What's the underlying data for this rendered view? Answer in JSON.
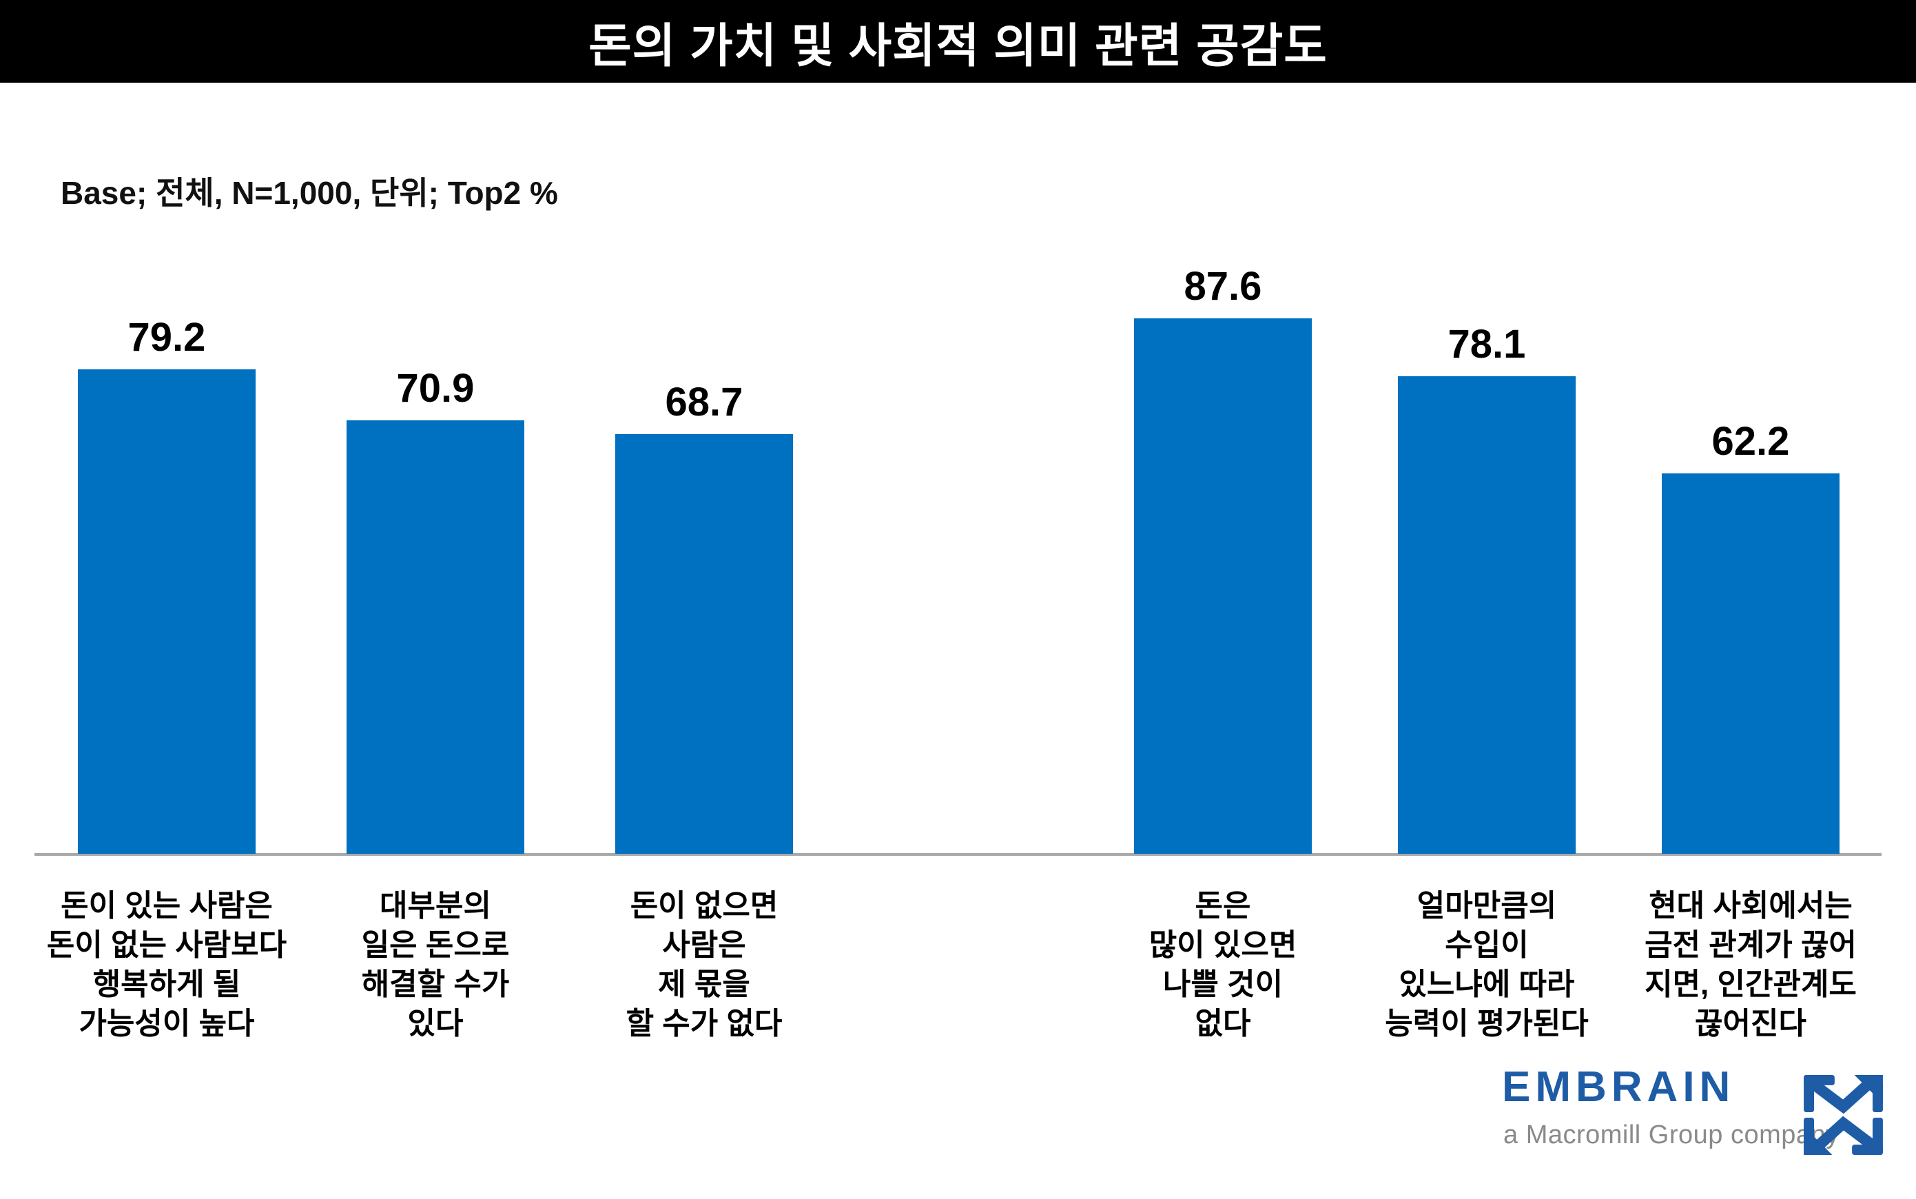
{
  "header": {
    "title": "돈의 가치 및 사회적 의미 관련 공감도"
  },
  "base_note": "Base; 전체, N=1,000, 단위; Top2 %",
  "chart_data": {
    "type": "bar",
    "title": "돈의 가치 및 사회적 의미 관련 공감도",
    "subtitle": "Base; 전체, N=1,000, 단위; Top2 %",
    "unit": "Top2 %",
    "categories": [
      "돈이 있는 사람은 돈이 없는 사람보다 행복하게 될 가능성이 높다",
      "대부분의 일은 돈으로 해결할 수가 있다",
      "돈이 없으면 사람은 제 몫을 할 수가 없다",
      "돈은 많이 있으면 나쁠 것이 없다",
      "얼마만큼의 수입이 있느냐에 따라 능력이 평가된다",
      "현대 사회에서는 금전 관계가 끊어지면, 인간관계도 끊어진다"
    ],
    "category_lines": [
      [
        "돈이 있는 사람은",
        "돈이 없는 사람보다",
        "행복하게 될",
        "가능성이 높다"
      ],
      [
        "대부분의",
        "일은 돈으로",
        "해결할 수가",
        "있다"
      ],
      [
        "돈이 없으면",
        "사람은",
        "제 몫을",
        "할 수가 없다"
      ],
      [
        "돈은",
        "많이 있으면",
        "나쁠 것이",
        "없다"
      ],
      [
        "얼마만큼의",
        "수입이",
        "있느냐에 따라",
        "능력이 평가된다"
      ],
      [
        "현대 사회에서는",
        "금전 관계가 끊어",
        "지면, 인간관계도",
        "끊어진다"
      ]
    ],
    "values": [
      79.2,
      70.9,
      68.7,
      87.6,
      78.1,
      62.2
    ],
    "ylim": [
      0,
      100
    ],
    "grid": false,
    "legend": "none",
    "bar_color": "#0070C0",
    "axis_line_color": "#a9a9a9",
    "value_label_color": "#000000"
  },
  "footer": {
    "brand": "EMBRAIN",
    "tagline": "a Macromill Group company",
    "brand_color": "#1E5CA6",
    "tagline_color": "#8a8a8a"
  }
}
